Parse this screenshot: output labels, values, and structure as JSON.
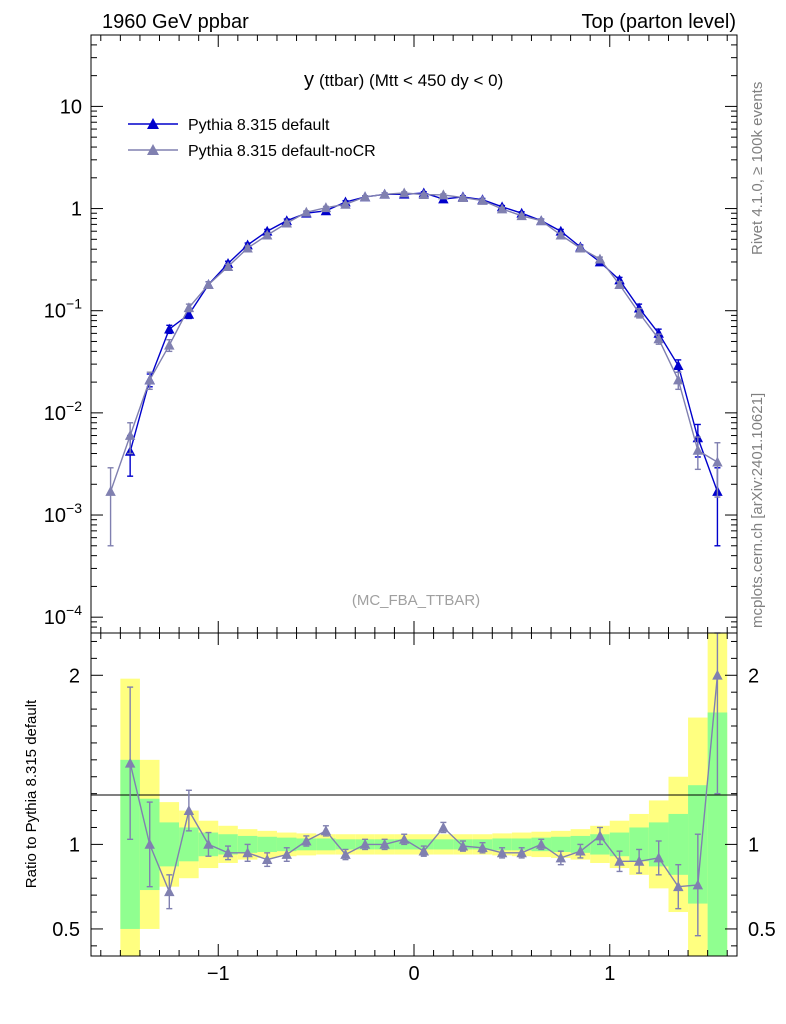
{
  "header": {
    "left": "1960 GeV ppbar",
    "right": "Top (parton level)"
  },
  "side": {
    "rivet": "Rivet 4.1.0, ≥ 100k events",
    "mcplots": "mcplots.cern.ch [arXiv:2401.10621]"
  },
  "chart_data": {
    "type": "line",
    "title_main": "y",
    "title_detail": "(ttbar) (Mtt < 450 dy < 0)",
    "watermark": "(MC_FBA_TTBAR)",
    "xlabel": "",
    "ylabel_main": "",
    "ylabel_ratio": "Ratio to Pythia 8.315 default",
    "yscale_main": "log",
    "ylim_main": [
      7e-05,
      50
    ],
    "ylim_ratio": [
      0.34,
      2.25
    ],
    "xlim": [
      -1.65,
      1.65
    ],
    "x_ticks": [
      -1,
      0,
      1
    ],
    "x_tick_labels": [
      "−1",
      "0",
      "1"
    ],
    "y_ticks_main": [
      0.0001,
      0.001,
      0.01,
      0.1,
      1,
      10
    ],
    "y_tick_labels_main": [
      {
        "base": "10",
        "exp": "−4"
      },
      {
        "base": "10",
        "exp": "−3"
      },
      {
        "base": "10",
        "exp": "−2"
      },
      {
        "base": "10",
        "exp": "−1"
      },
      {
        "base": "1",
        "exp": ""
      },
      {
        "base": "10",
        "exp": ""
      }
    ],
    "y_ticks_ratio": [
      0.5,
      1,
      2
    ],
    "y_tick_labels_ratio": [
      "0.5",
      "1",
      "2"
    ],
    "bins": [
      -1.55,
      -1.45,
      -1.35,
      -1.25,
      -1.15,
      -1.05,
      -0.95,
      -0.85,
      -0.75,
      -0.65,
      -0.55,
      -0.45,
      -0.35,
      -0.25,
      -0.15,
      -0.05,
      0.05,
      0.15,
      0.25,
      0.35,
      0.45,
      0.55,
      0.65,
      0.75,
      0.85,
      0.95,
      1.05,
      1.15,
      1.25,
      1.35,
      1.45,
      1.55
    ],
    "series": [
      {
        "name": "Pythia 8.315 default",
        "color": "#0000cc",
        "values": [
          null,
          0.0042,
          0.021,
          0.066,
          0.092,
          0.18,
          0.29,
          0.44,
          0.6,
          0.76,
          0.9,
          0.95,
          1.16,
          1.3,
          1.38,
          1.38,
          1.42,
          1.24,
          1.3,
          1.22,
          1.04,
          0.9,
          0.76,
          0.6,
          0.42,
          0.3,
          0.2,
          0.106,
          0.06,
          0.029,
          0.0057,
          0.0017
        ],
        "errors": [
          null,
          0.0018,
          0.003,
          0.006,
          0.008,
          0.012,
          0.015,
          0.02,
          0.025,
          0.03,
          0.03,
          0.03,
          0.035,
          0.035,
          0.04,
          0.04,
          0.04,
          0.035,
          0.035,
          0.035,
          0.03,
          0.03,
          0.03,
          0.025,
          0.02,
          0.015,
          0.012,
          0.01,
          0.006,
          0.004,
          0.002,
          0.0012
        ]
      },
      {
        "name": "Pythia 8.315 default-noCR",
        "color": "#8080b0",
        "values": [
          0.0017,
          0.006,
          0.021,
          0.046,
          0.107,
          0.18,
          0.27,
          0.41,
          0.55,
          0.72,
          0.92,
          1.02,
          1.1,
          1.3,
          1.38,
          1.42,
          1.37,
          1.36,
          1.28,
          1.2,
          0.99,
          0.85,
          0.76,
          0.55,
          0.41,
          0.32,
          0.18,
          0.095,
          0.053,
          0.021,
          0.0043,
          0.0033
        ],
        "errors": [
          0.0012,
          0.002,
          0.004,
          0.006,
          0.009,
          0.012,
          0.015,
          0.02,
          0.025,
          0.03,
          0.03,
          0.03,
          0.035,
          0.035,
          0.04,
          0.04,
          0.04,
          0.035,
          0.035,
          0.035,
          0.03,
          0.03,
          0.03,
          0.025,
          0.02,
          0.015,
          0.012,
          0.01,
          0.006,
          0.004,
          0.0015,
          0.0018
        ]
      }
    ],
    "ratio": {
      "values": [
        null,
        1.48,
        1.0,
        0.72,
        1.2,
        1.0,
        0.95,
        0.95,
        0.91,
        0.94,
        1.02,
        1.08,
        0.94,
        1.0,
        1.0,
        1.03,
        0.96,
        1.1,
        0.99,
        0.98,
        0.95,
        0.95,
        1.0,
        0.92,
        0.96,
        1.05,
        0.9,
        0.9,
        0.92,
        0.75,
        0.76,
        2.0
      ],
      "errors": [
        null,
        0.45,
        0.25,
        0.1,
        0.12,
        0.07,
        0.04,
        0.05,
        0.04,
        0.04,
        0.03,
        0.03,
        0.03,
        0.03,
        0.03,
        0.03,
        0.03,
        0.03,
        0.03,
        0.03,
        0.03,
        0.03,
        0.03,
        0.04,
        0.04,
        0.05,
        0.06,
        0.07,
        0.1,
        0.13,
        0.3,
        0.7
      ],
      "band_green": [
        null,
        0.5,
        0.27,
        0.13,
        0.1,
        0.07,
        0.06,
        0.05,
        0.045,
        0.04,
        0.035,
        0.035,
        0.03,
        0.03,
        0.03,
        0.03,
        0.03,
        0.03,
        0.03,
        0.03,
        0.035,
        0.035,
        0.04,
        0.045,
        0.05,
        0.06,
        0.07,
        0.1,
        0.13,
        0.18,
        0.35,
        0.78
      ],
      "band_yellow": [
        null,
        0.98,
        0.5,
        0.25,
        0.2,
        0.14,
        0.11,
        0.09,
        0.08,
        0.07,
        0.065,
        0.06,
        0.06,
        0.06,
        0.06,
        0.06,
        0.06,
        0.06,
        0.06,
        0.06,
        0.065,
        0.07,
        0.075,
        0.08,
        0.09,
        0.11,
        0.14,
        0.18,
        0.26,
        0.4,
        0.75,
        1.45
      ]
    }
  }
}
